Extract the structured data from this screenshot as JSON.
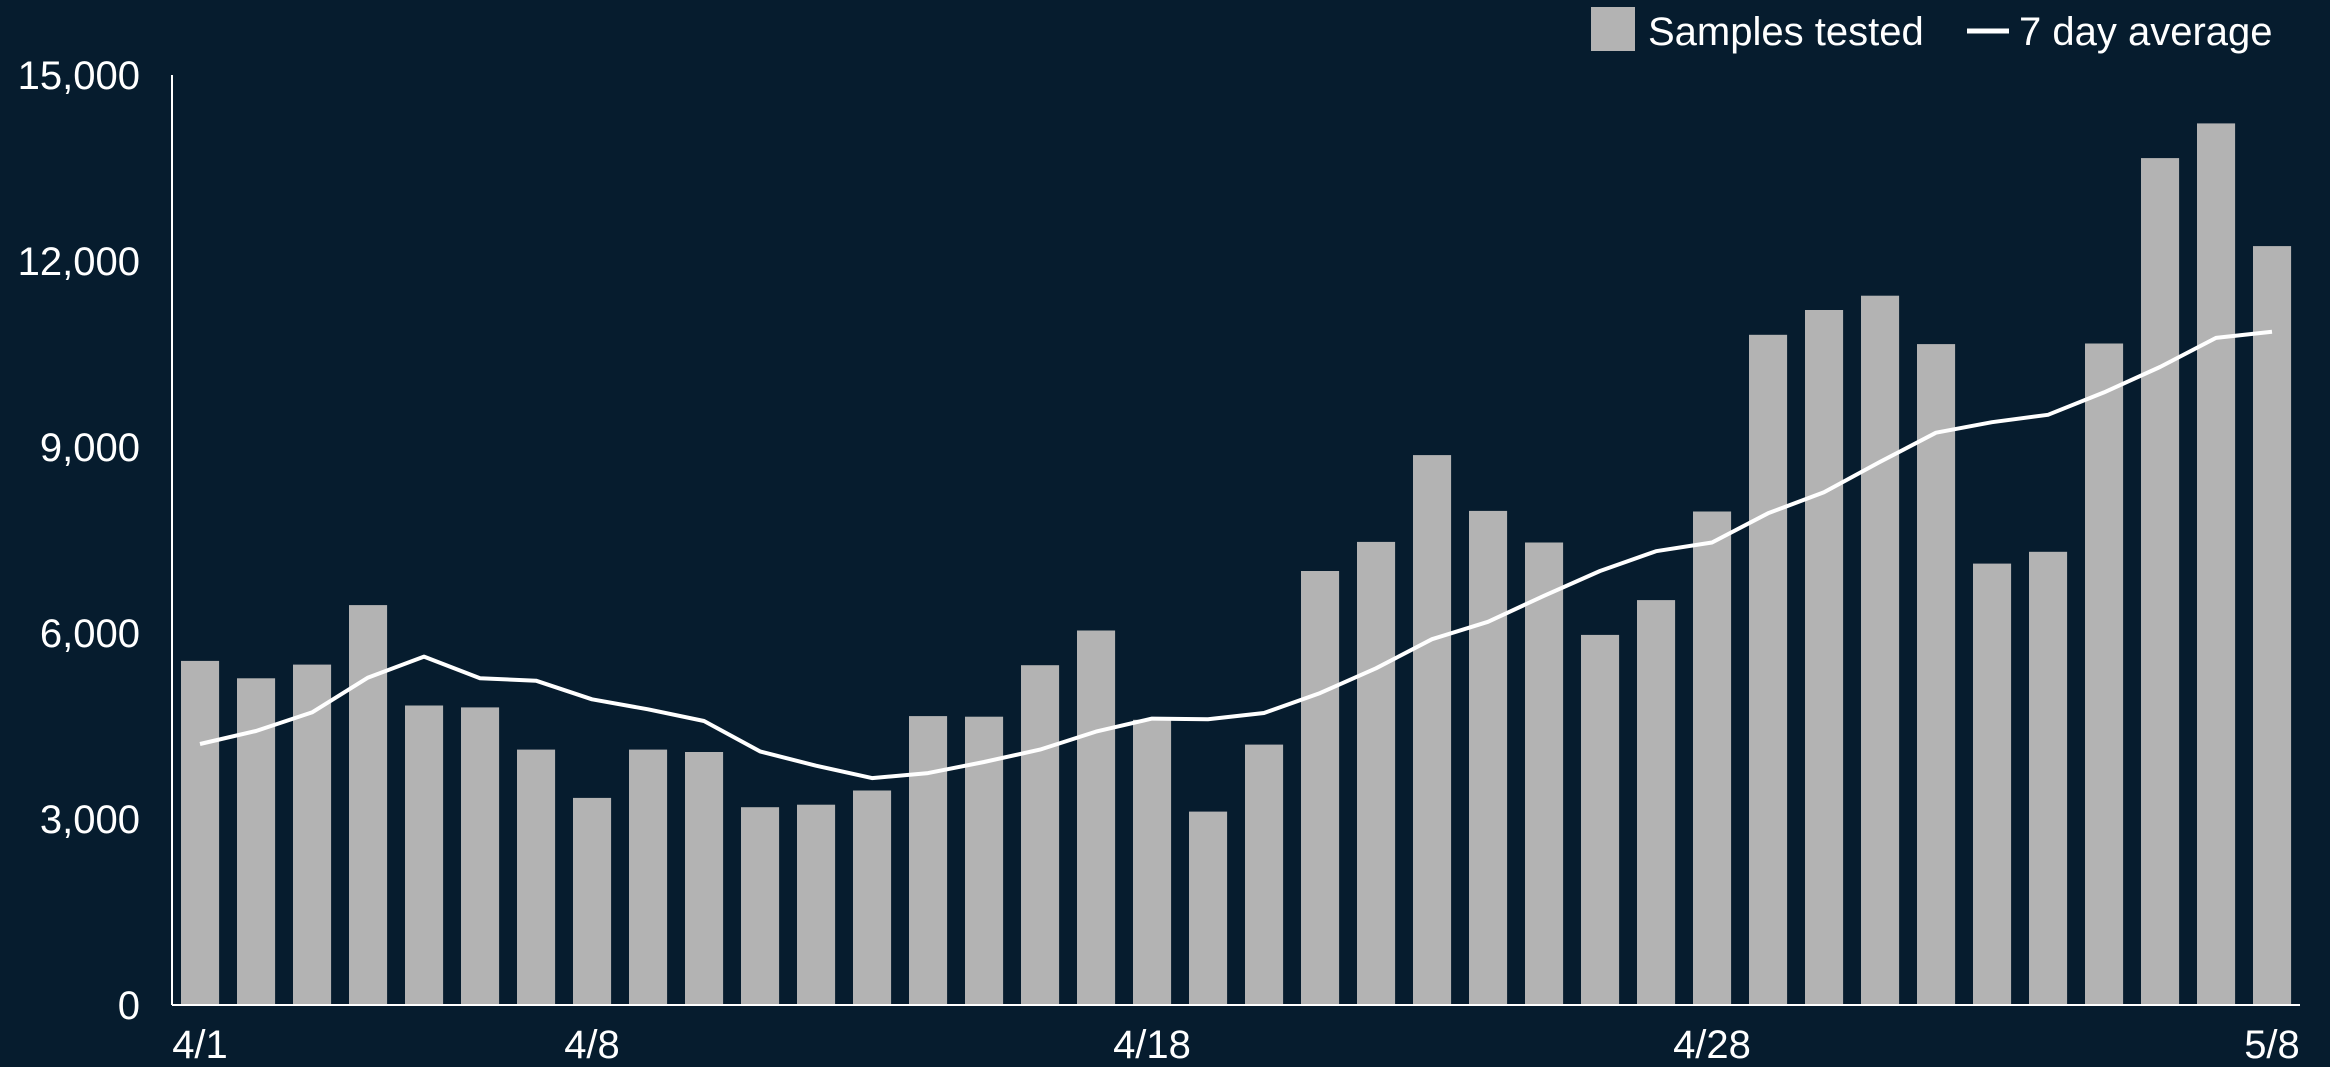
{
  "colors": {
    "background": "#061c2e",
    "bar": "#b3b3b3",
    "line": "#ffffff",
    "axis": "#ffffff",
    "text": "#ffffff"
  },
  "legend": {
    "items": [
      {
        "label": "Samples tested",
        "marker": "square"
      },
      {
        "label": "7 day average",
        "marker": "line"
      }
    ]
  },
  "chart_data": {
    "type": "bar",
    "title": "",
    "xlabel": "",
    "ylabel": "",
    "ylim": [
      0,
      15000
    ],
    "yticks": [
      0,
      3000,
      6000,
      9000,
      12000,
      15000
    ],
    "ytick_labels": [
      "0",
      "3,000",
      "6,000",
      "9,000",
      "12,000",
      "15,000"
    ],
    "grid": false,
    "legend_position": "top-right",
    "categories": [
      "4/1",
      "4/2",
      "4/3",
      "4/4",
      "4/5",
      "4/6",
      "4/7",
      "4/8",
      "4/9",
      "4/10",
      "4/11",
      "4/12",
      "4/13",
      "4/14",
      "4/15",
      "4/16",
      "4/17",
      "4/18",
      "4/19",
      "4/20",
      "4/21",
      "4/22",
      "4/23",
      "4/24",
      "4/25",
      "4/26",
      "4/27",
      "4/28",
      "4/29",
      "4/30",
      "5/1",
      "5/2",
      "5/3",
      "5/4",
      "5/5",
      "5/6",
      "5/7",
      "5/8"
    ],
    "xtick_labels": [
      {
        "index": 0,
        "label": "4/1"
      },
      {
        "index": 7,
        "label": "4/8"
      },
      {
        "index": 17,
        "label": "4/18"
      },
      {
        "index": 27,
        "label": "4/28"
      },
      {
        "index": 37,
        "label": "5/8"
      }
    ],
    "series": [
      {
        "name": "Samples tested",
        "type": "bar",
        "values": [
          5550,
          5270,
          5490,
          6450,
          4830,
          4800,
          4120,
          3340,
          4120,
          4080,
          3190,
          3230,
          3460,
          4660,
          4650,
          5480,
          6040,
          4600,
          3120,
          4200,
          7000,
          7470,
          8870,
          7970,
          7460,
          5970,
          6530,
          7960,
          10810,
          11210,
          11440,
          10660,
          7120,
          7310,
          10670,
          13660,
          14220,
          12240
        ]
      },
      {
        "name": "7 day average",
        "type": "line",
        "values": [
          4210,
          4420,
          4720,
          5280,
          5620,
          5270,
          5230,
          4930,
          4770,
          4580,
          4090,
          3860,
          3660,
          3740,
          3920,
          4120,
          4410,
          4620,
          4610,
          4710,
          5030,
          5430,
          5900,
          6180,
          6600,
          7000,
          7320,
          7460,
          7930,
          8270,
          8760,
          9230,
          9400,
          9520,
          9880,
          10290,
          10760,
          10860
        ]
      }
    ]
  }
}
